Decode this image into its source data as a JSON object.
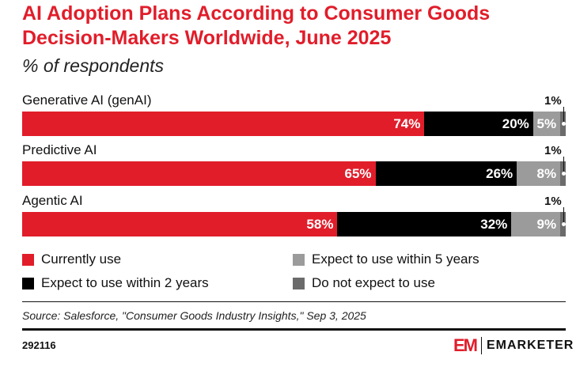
{
  "title": "AI Adoption Plans According to Consumer Goods Decision-Makers Worldwide, June 2025",
  "subtitle": "% of respondents",
  "source": "Source: Salesforce, \"Consumer Goods Industry Insights,\" Sep 3, 2025",
  "chart_id": "292116",
  "logo": {
    "mark": "EM",
    "name": "EMARKETER"
  },
  "chart_data": {
    "type": "bar",
    "stacked": true,
    "orientation": "horizontal",
    "title": "AI Adoption Plans According to Consumer Goods Decision-Makers Worldwide, June 2025",
    "subtitle": "% of respondents",
    "categories": [
      "Generative AI (genAI)",
      "Predictive AI",
      "Agentic AI"
    ],
    "series": [
      {
        "name": "Currently use",
        "color": "#e11d2a",
        "values": [
          74,
          65,
          58
        ],
        "labels": [
          "74%",
          "65%",
          "58%"
        ]
      },
      {
        "name": "Expect to use within 2 years",
        "color": "#000000",
        "values": [
          20,
          26,
          32
        ],
        "labels": [
          "20%",
          "26%",
          "32%"
        ]
      },
      {
        "name": "Expect to use within 5 years",
        "color": "#9b9b9b",
        "values": [
          5,
          8,
          9
        ],
        "labels": [
          "5%",
          "8%",
          "9%"
        ]
      },
      {
        "name": "Do not expect to use",
        "color": "#6b6b6b",
        "values": [
          1,
          1,
          1
        ],
        "labels": [
          "1%",
          "1%",
          "1%"
        ]
      }
    ],
    "xlim": [
      0,
      100
    ],
    "legend": "bottom"
  }
}
